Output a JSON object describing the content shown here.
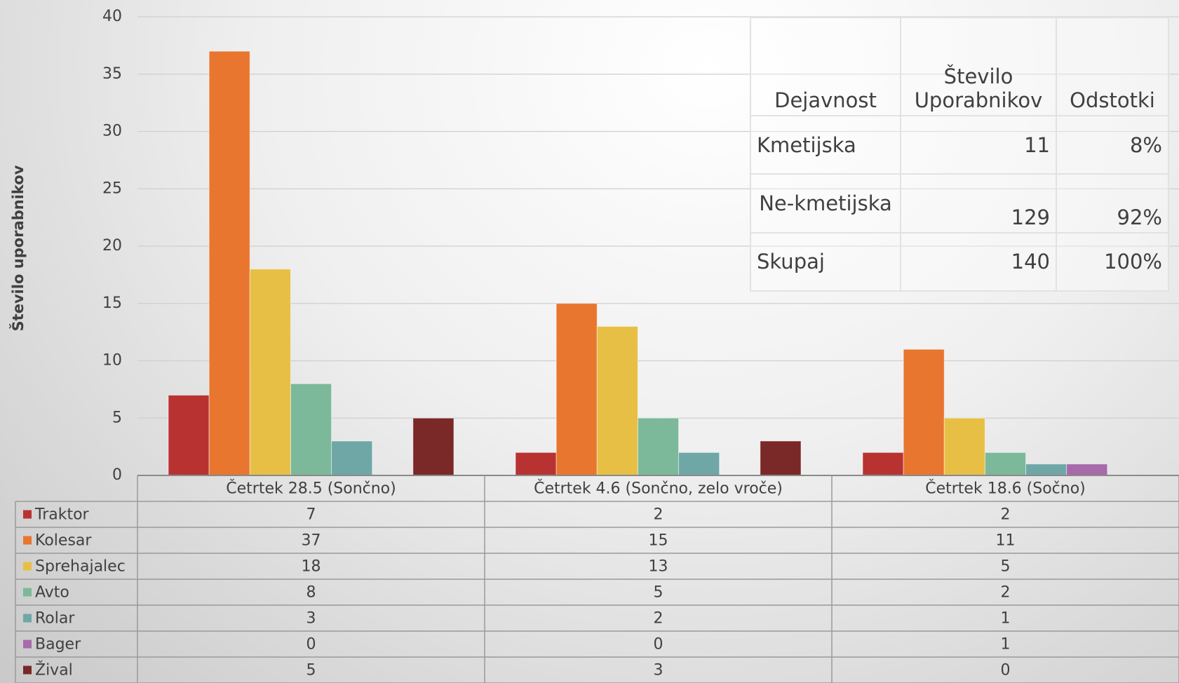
{
  "chart_data": {
    "type": "bar",
    "y_label": "Število uporabnikov",
    "categories": [
      "Četrtek 28.5 (Sončno)",
      "Četrtek 4.6 (Sončno, zelo vroče)",
      "Četrtek 18.6 (Sočno)"
    ],
    "series": [
      {
        "name": "Traktor",
        "color": "#b83232",
        "values": [
          7,
          2,
          2
        ]
      },
      {
        "name": "Kolesar",
        "color": "#e8762f",
        "values": [
          37,
          15,
          11
        ]
      },
      {
        "name": "Sprehajalec",
        "color": "#e7bf45",
        "values": [
          18,
          13,
          5
        ]
      },
      {
        "name": "Avto",
        "color": "#7cb89a",
        "values": [
          8,
          5,
          2
        ]
      },
      {
        "name": "Rolar",
        "color": "#6fa7a7",
        "values": [
          3,
          2,
          1
        ]
      },
      {
        "name": "Bager",
        "color": "#a76aaa",
        "values": [
          0,
          0,
          1
        ]
      },
      {
        "name": "Žival",
        "color": "#7a2828",
        "values": [
          5,
          3,
          0
        ]
      }
    ],
    "ylim": [
      0,
      40
    ],
    "yticks": [
      0,
      5,
      10,
      15,
      20,
      25,
      30,
      35,
      40
    ],
    "grid": true
  },
  "table": {
    "header": [
      "Dejavnost",
      "Število Uporabnikov",
      "Odstotki"
    ],
    "rows": [
      [
        "Kmetijska",
        "11",
        "8%"
      ],
      [
        "Ne-kmetijska",
        "129",
        "92%"
      ],
      [
        "Skupaj",
        "140",
        "100%"
      ]
    ]
  }
}
